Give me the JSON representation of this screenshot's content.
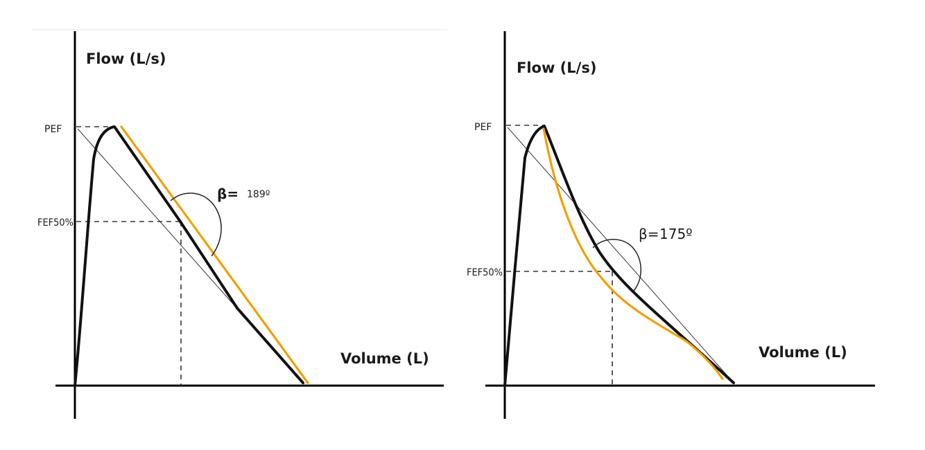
{
  "colors": {
    "curve": "#111111",
    "tangent": "#f0a000",
    "reference_line": "#333333",
    "background": "#ffffff"
  },
  "panels": [
    {
      "y_axis_label": "Flow (L/s)",
      "x_axis_label": "Volume (L)",
      "pef_label": "PEF",
      "fef_label": "FEF50%",
      "beta_symbol": "β=",
      "beta_value": "189º"
    },
    {
      "y_axis_label": "Flow (L/s)",
      "x_axis_label": "Volume (L)",
      "pef_label": "PEF",
      "fef_label": "FEF50%",
      "beta_symbol": "β=",
      "beta_value": "175º"
    }
  ]
}
